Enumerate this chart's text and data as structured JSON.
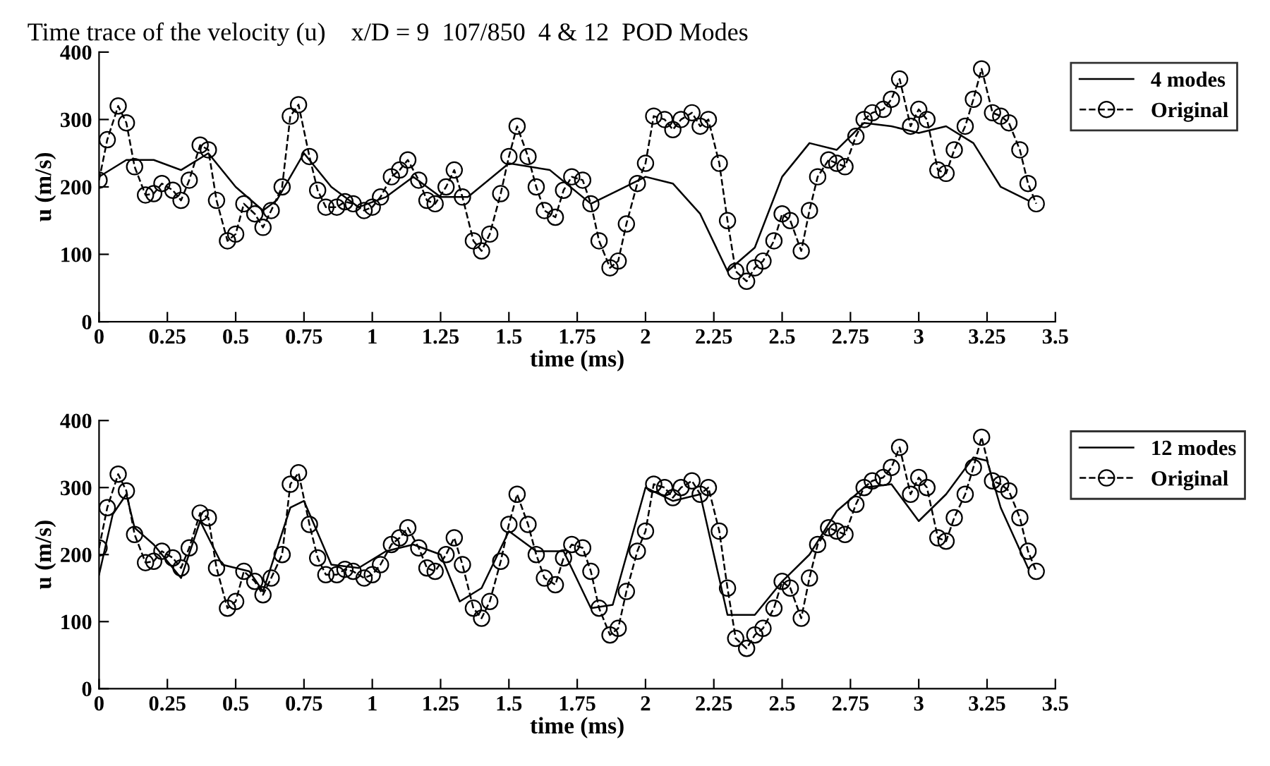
{
  "chart_data": [
    {
      "type": "line",
      "title": "Time trace of the velocity (u)    x/D = 9  107/850  4 & 12  POD Modes",
      "xlabel": "time (ms)",
      "ylabel": "u (m/s)",
      "xlim": [
        0,
        3.5
      ],
      "ylim": [
        0,
        400
      ],
      "xticks": [
        0,
        0.25,
        0.5,
        0.75,
        1,
        1.25,
        1.5,
        1.75,
        2,
        2.25,
        2.5,
        2.75,
        3,
        3.25,
        3.5
      ],
      "yticks": [
        0,
        100,
        200,
        300,
        400
      ],
      "grid": false,
      "legend": "top right",
      "series": [
        {
          "name": "4 modes",
          "color": "#000000",
          "line_style": "solid",
          "marker": "none",
          "x": [
            0,
            0.1,
            0.2,
            0.3,
            0.4,
            0.5,
            0.6,
            0.65,
            0.75,
            0.85,
            0.95,
            1.05,
            1.15,
            1.25,
            1.35,
            1.5,
            1.65,
            1.8,
            1.9,
            2.0,
            2.1,
            2.2,
            2.3,
            2.4,
            2.5,
            2.6,
            2.7,
            2.8,
            2.9,
            3.0,
            3.1,
            3.2,
            3.3,
            3.4
          ],
          "values": [
            215,
            240,
            240,
            225,
            250,
            200,
            165,
            180,
            250,
            200,
            170,
            185,
            215,
            185,
            185,
            235,
            225,
            175,
            195,
            215,
            205,
            160,
            75,
            110,
            215,
            265,
            255,
            295,
            290,
            280,
            290,
            265,
            200,
            180
          ]
        },
        {
          "name": "Original",
          "color": "#000000",
          "line_style": "dashed",
          "marker": "circle",
          "x": [
            0,
            0.03,
            0.07,
            0.1,
            0.13,
            0.17,
            0.2,
            0.23,
            0.27,
            0.3,
            0.33,
            0.37,
            0.4,
            0.43,
            0.47,
            0.5,
            0.53,
            0.57,
            0.6,
            0.63,
            0.67,
            0.7,
            0.73,
            0.77,
            0.8,
            0.83,
            0.87,
            0.9,
            0.93,
            0.97,
            1.0,
            1.03,
            1.07,
            1.1,
            1.13,
            1.17,
            1.2,
            1.23,
            1.27,
            1.3,
            1.33,
            1.37,
            1.4,
            1.43,
            1.47,
            1.5,
            1.53,
            1.57,
            1.6,
            1.63,
            1.67,
            1.7,
            1.73,
            1.77,
            1.8,
            1.83,
            1.87,
            1.9,
            1.93,
            1.97,
            2.0,
            2.03,
            2.07,
            2.1,
            2.13,
            2.17,
            2.2,
            2.23,
            2.27,
            2.3,
            2.33,
            2.37,
            2.4,
            2.43,
            2.47,
            2.5,
            2.53,
            2.57,
            2.6,
            2.63,
            2.67,
            2.7,
            2.73,
            2.77,
            2.8,
            2.83,
            2.87,
            2.9,
            2.93,
            2.97,
            3.0,
            3.03,
            3.07,
            3.1,
            3.13,
            3.17,
            3.2,
            3.23,
            3.27,
            3.3,
            3.33,
            3.37,
            3.4,
            3.43
          ],
          "values": [
            210,
            270,
            320,
            295,
            230,
            188,
            190,
            205,
            195,
            180,
            210,
            262,
            255,
            180,
            120,
            130,
            175,
            160,
            140,
            165,
            200,
            305,
            322,
            245,
            195,
            170,
            170,
            178,
            175,
            165,
            170,
            185,
            215,
            225,
            240,
            210,
            180,
            175,
            200,
            225,
            185,
            120,
            105,
            130,
            190,
            245,
            290,
            245,
            200,
            165,
            155,
            195,
            215,
            210,
            175,
            120,
            80,
            90,
            145,
            205,
            235,
            305,
            300,
            285,
            300,
            310,
            290,
            300,
            235,
            150,
            75,
            60,
            80,
            90,
            120,
            160,
            150,
            105,
            165,
            215,
            240,
            235,
            230,
            275,
            300,
            310,
            315,
            330,
            360,
            290,
            315,
            300,
            225,
            220,
            255,
            290,
            330,
            375,
            310,
            305,
            295,
            255,
            205,
            175
          ]
        }
      ]
    },
    {
      "type": "line",
      "xlabel": "time (ms)",
      "ylabel": "u (m/s)",
      "xlim": [
        0,
        3.5
      ],
      "ylim": [
        0,
        400
      ],
      "xticks": [
        0,
        0.25,
        0.5,
        0.75,
        1,
        1.25,
        1.5,
        1.75,
        2,
        2.25,
        2.5,
        2.75,
        3,
        3.25,
        3.5
      ],
      "yticks": [
        0,
        100,
        200,
        300,
        400
      ],
      "grid": false,
      "legend": "top right",
      "series": [
        {
          "name": "12 modes",
          "color": "#000000",
          "line_style": "solid",
          "marker": "none",
          "x": [
            0,
            0.05,
            0.1,
            0.13,
            0.2,
            0.3,
            0.37,
            0.45,
            0.55,
            0.6,
            0.7,
            0.75,
            0.85,
            0.95,
            1.05,
            1.15,
            1.25,
            1.32,
            1.4,
            1.5,
            1.6,
            1.7,
            1.8,
            1.88,
            2.0,
            2.1,
            2.2,
            2.3,
            2.4,
            2.5,
            2.6,
            2.7,
            2.8,
            2.9,
            3.0,
            3.1,
            3.2,
            3.25,
            3.3,
            3.4
          ],
          "values": [
            170,
            260,
            290,
            240,
            215,
            165,
            250,
            185,
            175,
            145,
            270,
            280,
            185,
            180,
            205,
            215,
            200,
            130,
            150,
            235,
            205,
            205,
            120,
            125,
            300,
            280,
            290,
            110,
            110,
            160,
            200,
            265,
            300,
            305,
            250,
            290,
            345,
            340,
            270,
            180
          ]
        },
        {
          "name": "Original",
          "color": "#000000",
          "line_style": "dashed",
          "marker": "circle",
          "x": [
            0,
            0.03,
            0.07,
            0.1,
            0.13,
            0.17,
            0.2,
            0.23,
            0.27,
            0.3,
            0.33,
            0.37,
            0.4,
            0.43,
            0.47,
            0.5,
            0.53,
            0.57,
            0.6,
            0.63,
            0.67,
            0.7,
            0.73,
            0.77,
            0.8,
            0.83,
            0.87,
            0.9,
            0.93,
            0.97,
            1.0,
            1.03,
            1.07,
            1.1,
            1.13,
            1.17,
            1.2,
            1.23,
            1.27,
            1.3,
            1.33,
            1.37,
            1.4,
            1.43,
            1.47,
            1.5,
            1.53,
            1.57,
            1.6,
            1.63,
            1.67,
            1.7,
            1.73,
            1.77,
            1.8,
            1.83,
            1.87,
            1.9,
            1.93,
            1.97,
            2.0,
            2.03,
            2.07,
            2.1,
            2.13,
            2.17,
            2.2,
            2.23,
            2.27,
            2.3,
            2.33,
            2.37,
            2.4,
            2.43,
            2.47,
            2.5,
            2.53,
            2.57,
            2.6,
            2.63,
            2.67,
            2.7,
            2.73,
            2.77,
            2.8,
            2.83,
            2.87,
            2.9,
            2.93,
            2.97,
            3.0,
            3.03,
            3.07,
            3.1,
            3.13,
            3.17,
            3.2,
            3.23,
            3.27,
            3.3,
            3.33,
            3.37,
            3.4,
            3.43
          ],
          "values": [
            210,
            270,
            320,
            295,
            230,
            188,
            190,
            205,
            195,
            180,
            210,
            262,
            255,
            180,
            120,
            130,
            175,
            160,
            140,
            165,
            200,
            305,
            322,
            245,
            195,
            170,
            170,
            178,
            175,
            165,
            170,
            185,
            215,
            225,
            240,
            210,
            180,
            175,
            200,
            225,
            185,
            120,
            105,
            130,
            190,
            245,
            290,
            245,
            200,
            165,
            155,
            195,
            215,
            210,
            175,
            120,
            80,
            90,
            145,
            205,
            235,
            305,
            300,
            285,
            300,
            310,
            290,
            300,
            235,
            150,
            75,
            60,
            80,
            90,
            120,
            160,
            150,
            105,
            165,
            215,
            240,
            235,
            230,
            275,
            300,
            310,
            315,
            330,
            360,
            290,
            315,
            300,
            225,
            220,
            255,
            290,
            330,
            375,
            310,
            305,
            295,
            255,
            205,
            175
          ]
        }
      ]
    }
  ]
}
